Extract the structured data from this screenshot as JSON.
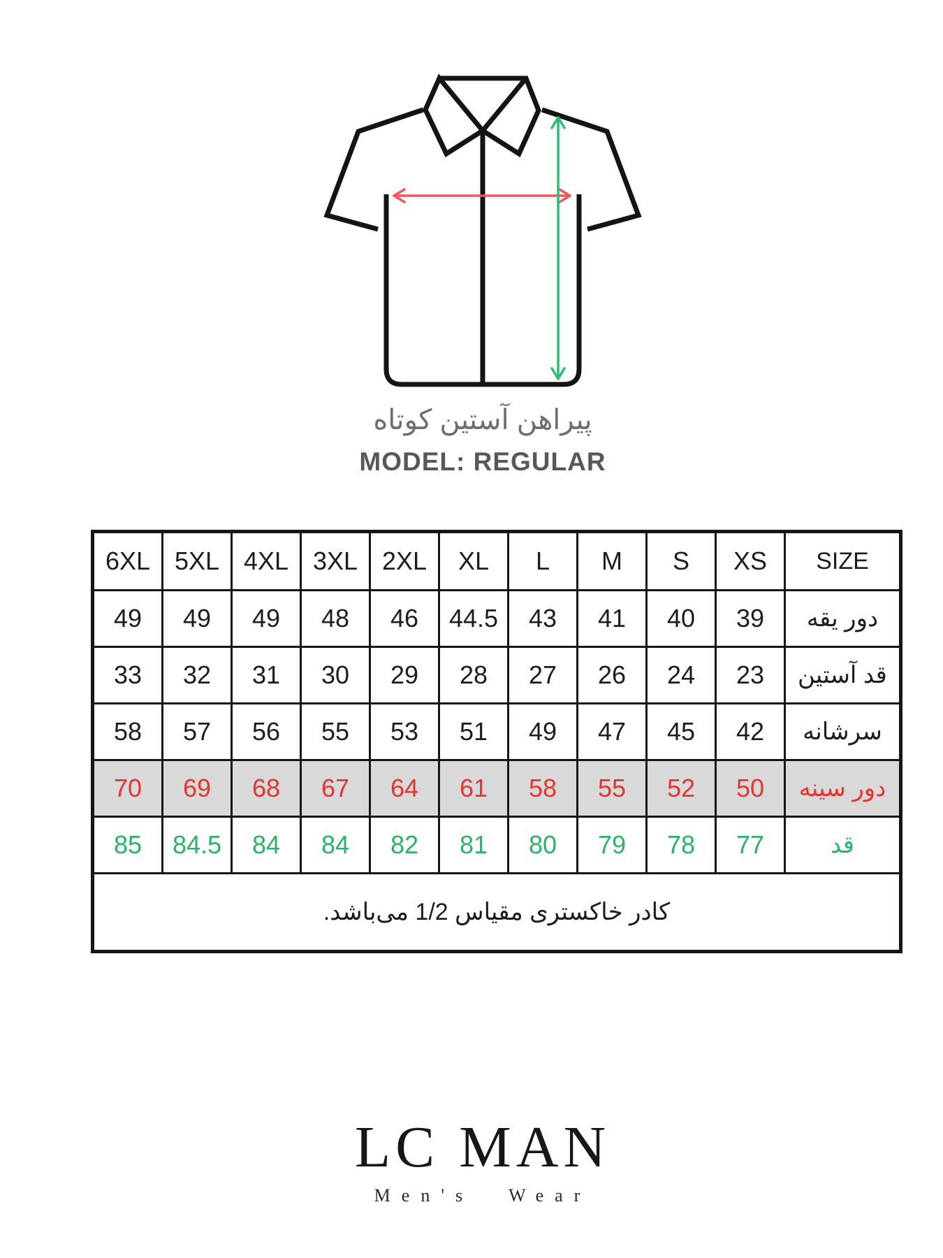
{
  "diagram": {
    "caption_fa": "پیراهن آستین کوتاه",
    "caption_en": "MODEL: REGULAR",
    "arrow_colors": {
      "chest_width": "#f4555c",
      "body_length": "#2ebd74"
    },
    "outline_color": "#141414"
  },
  "table": {
    "header": [
      "6XL",
      "5XL",
      "4XL",
      "3XL",
      "2XL",
      "XL",
      "L",
      "M",
      "S",
      "XS",
      "SIZE"
    ],
    "rows": [
      {
        "label": "دور یقه",
        "style": "normal",
        "values": [
          "49",
          "49",
          "49",
          "48",
          "46",
          "44.5",
          "43",
          "41",
          "40",
          "39"
        ]
      },
      {
        "label": "قد آستین",
        "style": "normal",
        "values": [
          "33",
          "32",
          "31",
          "30",
          "29",
          "28",
          "27",
          "26",
          "24",
          "23"
        ]
      },
      {
        "label": "سرشانه",
        "style": "normal",
        "values": [
          "58",
          "57",
          "56",
          "55",
          "53",
          "51",
          "49",
          "47",
          "45",
          "42"
        ]
      },
      {
        "label": "دور سینه",
        "style": "chest",
        "values": [
          "70",
          "69",
          "68",
          "67",
          "64",
          "61",
          "58",
          "55",
          "52",
          "50"
        ]
      },
      {
        "label": "قد",
        "style": "height",
        "values": [
          "85",
          "84.5",
          "84",
          "84",
          "82",
          "81",
          "80",
          "79",
          "78",
          "77"
        ]
      }
    ],
    "note": "کادر خاکستری مقیاس 1/2 می‌باشد.",
    "colors": {
      "chest_text": "#e43530",
      "chest_row_bg": "#d9d9d9",
      "height_text": "#2bb367"
    }
  },
  "logo": {
    "title": "LC MAN",
    "subtitle": "Men's Wear"
  }
}
